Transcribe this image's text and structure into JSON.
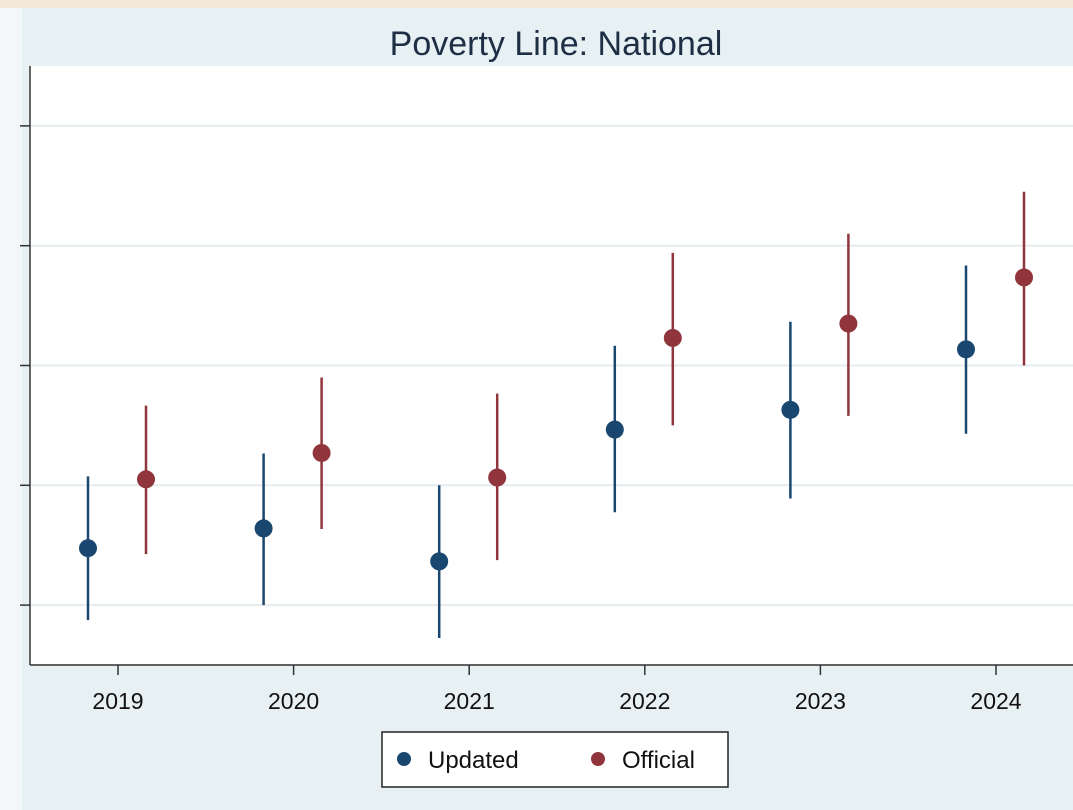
{
  "chart_data": {
    "type": "scatter",
    "title": "Poverty Line: National",
    "xlabel": "",
    "ylabel": "",
    "categories": [
      "2019",
      "2020",
      "2021",
      "2022",
      "2023",
      "2024"
    ],
    "ylim": [
      0,
      10
    ],
    "yticks": [
      1,
      3,
      5,
      7,
      9
    ],
    "grid": true,
    "legend_position": "bottom",
    "error_bars": true,
    "series": [
      {
        "name": "Updated",
        "color": "#1a476f",
        "values": [
          1.95,
          2.28,
          1.73,
          3.93,
          4.26,
          5.27
        ],
        "lower": [
          0.75,
          1.0,
          0.45,
          2.55,
          2.78,
          3.86
        ],
        "upper": [
          3.15,
          3.53,
          3.0,
          5.33,
          5.73,
          6.67
        ]
      },
      {
        "name": "Official",
        "color": "#90353b",
        "values": [
          3.1,
          3.54,
          3.13,
          5.46,
          5.7,
          6.47
        ],
        "lower": [
          1.85,
          2.27,
          1.75,
          4.0,
          4.16,
          5.0
        ],
        "upper": [
          4.33,
          4.8,
          4.53,
          6.88,
          7.2,
          7.9
        ]
      }
    ]
  }
}
